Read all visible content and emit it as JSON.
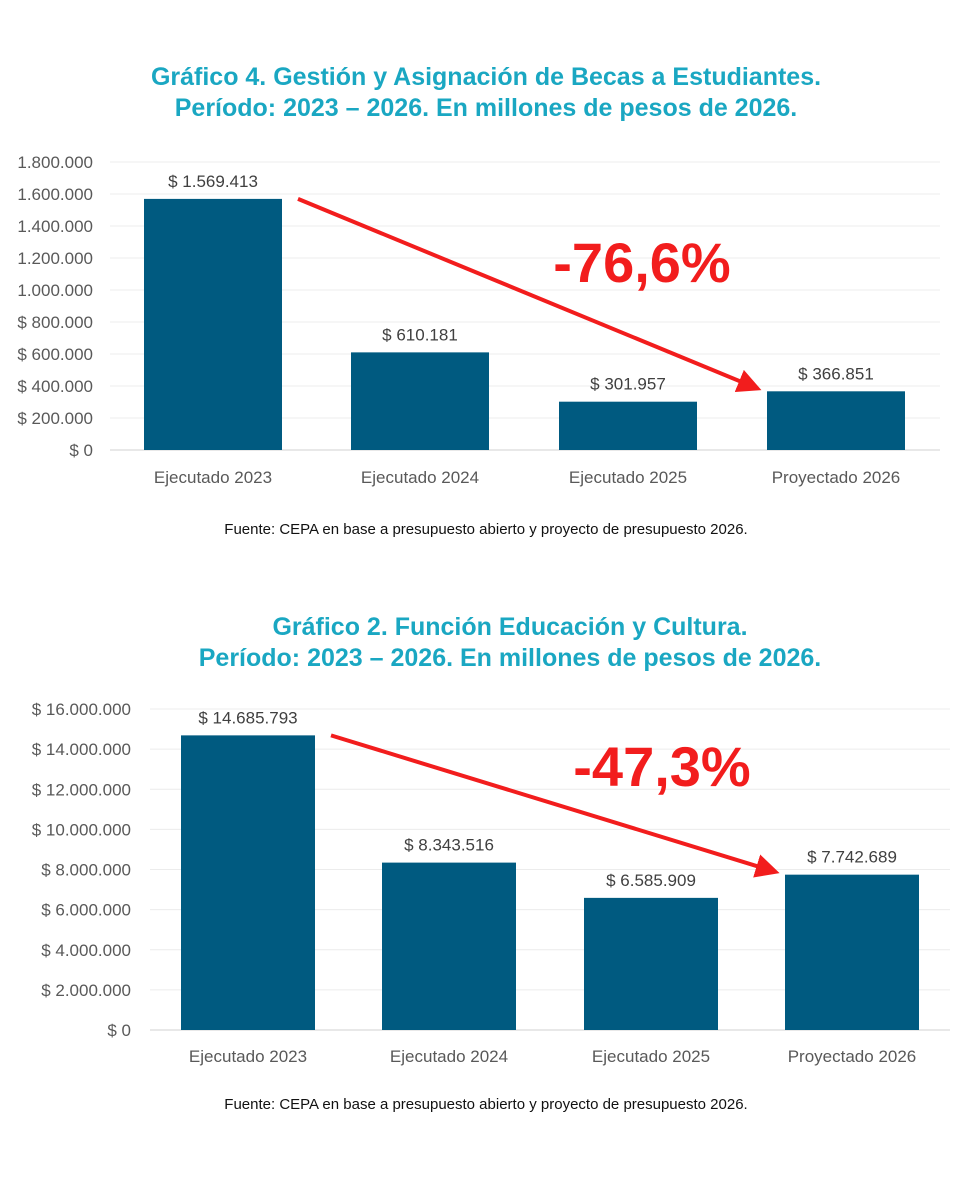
{
  "chart_data": [
    {
      "type": "bar",
      "title_lines": [
        "Gráfico 4. Gestión y Asignación de Becas a Estudiantes.",
        "Período: 2023 – 2026. En millones de pesos de 2026."
      ],
      "categories": [
        "Ejecutado 2023",
        "Ejecutado 2024",
        "Ejecutado 2025",
        "Proyectado 2026"
      ],
      "values": [
        1569413,
        610181,
        301957,
        366851
      ],
      "data_labels": [
        "$ 1.569.413",
        "$ 610.181",
        "$ 301.957",
        "$ 366.851"
      ],
      "ylim": [
        0,
        1800000
      ],
      "y_ticks": [
        0,
        200000,
        400000,
        600000,
        800000,
        1000000,
        1200000,
        1400000,
        1600000,
        1800000
      ],
      "y_tick_labels": [
        "$ 0",
        "$ 200.000",
        "$ 400.000",
        "$ 600.000",
        "$ 800.000",
        "1.000.000",
        "1.200.000",
        "1.400.000",
        "1.600.000",
        "1.800.000"
      ],
      "grid": true,
      "bar_color": "#005a80",
      "change_annotation": "-76,6%",
      "arrow_color": "#f21d1d",
      "source": "Fuente: CEPA en base a presupuesto abierto y proyecto de presupuesto 2026."
    },
    {
      "type": "bar",
      "title_lines": [
        "Gráfico 2. Función Educación y Cultura.",
        "Período: 2023 – 2026. En millones de pesos de 2026."
      ],
      "categories": [
        "Ejecutado 2023",
        "Ejecutado 2024",
        "Ejecutado 2025",
        "Proyectado 2026"
      ],
      "values": [
        14685793,
        8343516,
        6585909,
        7742689
      ],
      "data_labels": [
        "$ 14.685.793",
        "$ 8.343.516",
        "$ 6.585.909",
        "$ 7.742.689"
      ],
      "ylim": [
        0,
        16000000
      ],
      "y_ticks": [
        0,
        2000000,
        4000000,
        6000000,
        8000000,
        10000000,
        12000000,
        14000000,
        16000000
      ],
      "y_tick_labels": [
        "$ 0",
        "$ 2.000.000",
        "$ 4.000.000",
        "$ 6.000.000",
        "$ 8.000.000",
        "$ 10.000.000",
        "$ 12.000.000",
        "$ 14.000.000",
        "$ 16.000.000"
      ],
      "grid": true,
      "bar_color": "#005a80",
      "change_annotation": "-47,3%",
      "arrow_color": "#f21d1d",
      "source": "Fuente: CEPA en base a presupuesto abierto y proyecto de presupuesto 2026."
    }
  ]
}
